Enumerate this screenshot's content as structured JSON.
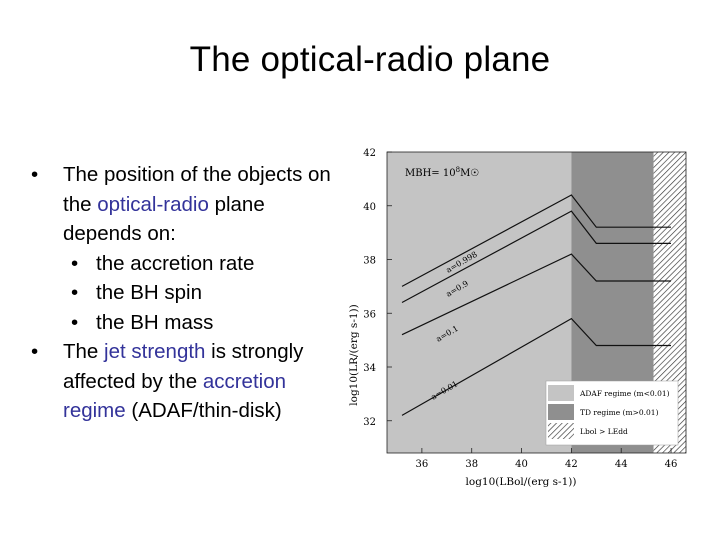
{
  "slide": {
    "title": "The optical-radio plane",
    "bullet1": {
      "pre": "The position of the objects on the ",
      "highlight": "optical-radio",
      "post": " plane depends on:"
    },
    "sub_bullets": [
      "the accretion rate",
      "the BH spin",
      "the BH mass"
    ],
    "bullet2": {
      "pre": "The ",
      "highlight1": "jet strength",
      "mid": " is strongly affected by the ",
      "highlight2": "accretion regime",
      "post": " (ADAF/thin-disk)"
    },
    "bullet_glyph": "•"
  },
  "chart_data": {
    "type": "line",
    "xlabel": "log10(LBol/(erg s-1))",
    "ylabel": "log10(LR/(erg s-1))",
    "xlim": [
      34.6,
      46.6
    ],
    "ylim": [
      30.8,
      42
    ],
    "x_ticks": [
      36,
      38,
      40,
      42,
      44,
      46
    ],
    "x_tick_labels": [
      "36",
      "38",
      "40",
      "42",
      "44",
      "46"
    ],
    "y_ticks": [
      32,
      34,
      36,
      38,
      40,
      42
    ],
    "y_tick_labels": [
      "32",
      "34",
      "36",
      "38",
      "40",
      "42"
    ],
    "annotation": "MBH = 10^8 M☉",
    "annotation_text": "MBH= 10",
    "annotation_sup": "8",
    "annotation_tail": "M☉",
    "regions": [
      {
        "name": "ADAF regime (m<0.01)",
        "x": [
          34.6,
          42.0
        ],
        "color": "#c4c4c4"
      },
      {
        "name": "TD regime (m>0.01)",
        "x": [
          42.0,
          45.3
        ],
        "color": "#8f8f8f"
      },
      {
        "name": "Lbol > LEdd",
        "x": [
          45.3,
          46.6
        ],
        "pattern": "hatch"
      }
    ],
    "series": [
      {
        "name": "a=0.998",
        "points": [
          [
            35.2,
            37.0
          ],
          [
            42.0,
            40.4
          ],
          [
            43.0,
            39.2
          ],
          [
            46.0,
            39.2
          ]
        ],
        "color": "#111111"
      },
      {
        "name": "a=0.9",
        "points": [
          [
            35.2,
            36.4
          ],
          [
            42.0,
            39.8
          ],
          [
            43.0,
            38.6
          ],
          [
            46.0,
            38.6
          ]
        ],
        "color": "#111111"
      },
      {
        "name": "a=0.1",
        "points": [
          [
            35.2,
            35.2
          ],
          [
            42.0,
            38.2
          ],
          [
            43.0,
            37.2
          ],
          [
            46.0,
            37.2
          ]
        ],
        "color": "#111111"
      },
      {
        "name": "a=0.01",
        "points": [
          [
            35.2,
            32.2
          ],
          [
            42.0,
            35.8
          ],
          [
            43.0,
            34.8
          ],
          [
            46.0,
            34.8
          ]
        ],
        "color": "#111111"
      }
    ],
    "curve_labels": [
      "a=0.998",
      "a=0.9",
      "a=0.1",
      "a=0.01"
    ],
    "legend": [
      {
        "label": "ADAF regime (m<0.01)",
        "swatch": "#c4c4c4"
      },
      {
        "label": "TD regime (m>0.01)",
        "swatch": "#8f8f8f"
      },
      {
        "label": "Lbol > LEdd",
        "swatch": "hatch"
      }
    ],
    "legend_position": "bottom-right"
  }
}
